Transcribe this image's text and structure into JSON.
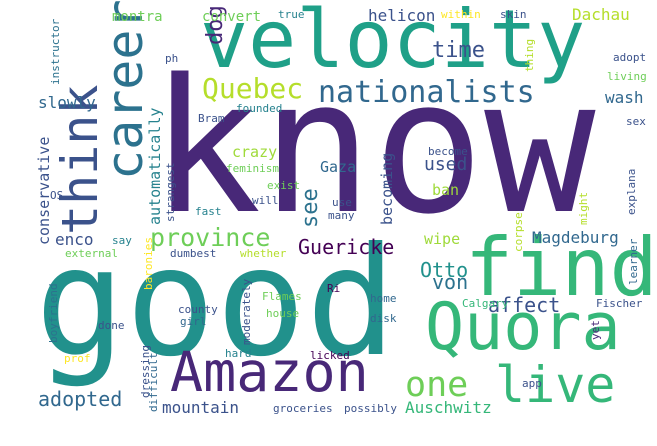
{
  "words": [
    {
      "text": "know",
      "color": "#482878",
      "vertical": false
    },
    {
      "text": "good",
      "color": "#21918c",
      "vertical": false
    },
    {
      "text": "velocity",
      "color": "#1fa088",
      "vertical": false
    },
    {
      "text": "think",
      "color": "#3b528b",
      "vertical": true
    },
    {
      "text": "career",
      "color": "#2c728e",
      "vertical": true
    },
    {
      "text": "find",
      "color": "#35b779",
      "vertical": false
    },
    {
      "text": "Quora",
      "color": "#35b779",
      "vertical": false
    },
    {
      "text": "Amazon",
      "color": "#482878",
      "vertical": false
    },
    {
      "text": "live",
      "color": "#35b779",
      "vertical": false
    },
    {
      "text": "one",
      "color": "#6ece58",
      "vertical": false
    },
    {
      "text": "nationalists",
      "color": "#31688e",
      "vertical": false
    },
    {
      "text": "Quebec",
      "color": "#b5de2b",
      "vertical": false
    },
    {
      "text": "province",
      "color": "#6ece58",
      "vertical": false
    },
    {
      "text": "time",
      "color": "#3b528b",
      "vertical": false
    },
    {
      "text": "dog",
      "color": "#482878",
      "vertical": true
    },
    {
      "text": "see",
      "color": "#2c728e",
      "vertical": true
    },
    {
      "text": "Guericke",
      "color": "#440154",
      "vertical": false
    },
    {
      "text": "Otto",
      "color": "#21918c",
      "vertical": false
    },
    {
      "text": "von",
      "color": "#2c728e",
      "vertical": false
    },
    {
      "text": "affect",
      "color": "#3b528b",
      "vertical": false
    },
    {
      "text": "adopted",
      "color": "#31688e",
      "vertical": false
    },
    {
      "text": "mountain",
      "color": "#3b528b",
      "vertical": false
    },
    {
      "text": "Auschwitz",
      "color": "#35b779",
      "vertical": false
    },
    {
      "text": "Magdeburg",
      "color": "#31688e",
      "vertical": false
    },
    {
      "text": "helicon",
      "color": "#3b528b",
      "vertical": false
    },
    {
      "text": "Dachau",
      "color": "#b5de2b",
      "vertical": false
    },
    {
      "text": "wash",
      "color": "#31688e",
      "vertical": false
    },
    {
      "text": "montra",
      "color": "#6ece58",
      "vertical": false
    },
    {
      "text": "convert",
      "color": "#6ece58",
      "vertical": false
    },
    {
      "text": "slowly",
      "color": "#31688e",
      "vertical": false
    },
    {
      "text": "automatically",
      "color": "#26828e",
      "vertical": true
    },
    {
      "text": "conservative",
      "color": "#3b528b",
      "vertical": true
    },
    {
      "text": "enco",
      "color": "#3b528b",
      "vertical": false
    },
    {
      "text": "crazy",
      "color": "#9fda3a",
      "vertical": false
    },
    {
      "text": "Gaza",
      "color": "#31688e",
      "vertical": false
    },
    {
      "text": "becoming",
      "color": "#3b528b",
      "vertical": true
    },
    {
      "text": "used",
      "color": "#3b528b",
      "vertical": false
    },
    {
      "text": "ban",
      "color": "#9fda3a",
      "vertical": false
    },
    {
      "text": "wipe",
      "color": "#9fda3a",
      "vertical": false
    },
    {
      "text": "within",
      "color": "#fde725",
      "vertical": false
    },
    {
      "text": "skin",
      "color": "#3b528b",
      "vertical": false
    },
    {
      "text": "true",
      "color": "#26828e",
      "vertical": false
    },
    {
      "text": "adopt",
      "color": "#3b528b",
      "vertical": false
    },
    {
      "text": "living",
      "color": "#6ece58",
      "vertical": false
    },
    {
      "text": "sex",
      "color": "#3b528b",
      "vertical": false
    },
    {
      "text": "explana",
      "color": "#3b528b",
      "vertical": true
    },
    {
      "text": "learner",
      "color": "#31688e",
      "vertical": true
    },
    {
      "text": "Fischer",
      "color": "#3b528b",
      "vertical": false
    },
    {
      "text": "yet",
      "color": "#482878",
      "vertical": true
    },
    {
      "text": "app",
      "color": "#3b528b",
      "vertical": false
    },
    {
      "text": "Calgary",
      "color": "#35b779",
      "vertical": false
    },
    {
      "text": "groceries",
      "color": "#3b528b",
      "vertical": false
    },
    {
      "text": "possibly",
      "color": "#3b528b",
      "vertical": false
    },
    {
      "text": "licked",
      "color": "#440154",
      "vertical": false
    },
    {
      "text": "disk",
      "color": "#31688e",
      "vertical": false
    },
    {
      "text": "home",
      "color": "#31688e",
      "vertical": false
    },
    {
      "text": "Ri",
      "color": "#440154",
      "vertical": false
    },
    {
      "text": "corpse",
      "color": "#b5de2b",
      "vertical": true
    },
    {
      "text": "might",
      "color": "#b5de2b",
      "vertical": true
    },
    {
      "text": "thing",
      "color": "#b5de2b",
      "vertical": true
    },
    {
      "text": "become",
      "color": "#3b528b",
      "vertical": false
    },
    {
      "text": "exist",
      "color": "#6ece58",
      "vertical": false
    },
    {
      "text": "feminism",
      "color": "#6ece58",
      "vertical": false
    },
    {
      "text": "will",
      "color": "#3b528b",
      "vertical": false
    },
    {
      "text": "use",
      "color": "#3b528b",
      "vertical": false
    },
    {
      "text": "many",
      "color": "#3b528b",
      "vertical": false
    },
    {
      "text": "fast",
      "color": "#26828e",
      "vertical": false
    },
    {
      "text": "strangest",
      "color": "#3b528b",
      "vertical": true
    },
    {
      "text": "founded",
      "color": "#26828e",
      "vertical": false
    },
    {
      "text": "Bram",
      "color": "#3b528b",
      "vertical": false
    },
    {
      "text": "ph",
      "color": "#3b528b",
      "vertical": false
    },
    {
      "text": "whether",
      "color": "#b5de2b",
      "vertical": false
    },
    {
      "text": "dumbest",
      "color": "#3b528b",
      "vertical": false
    },
    {
      "text": "external",
      "color": "#6ece58",
      "vertical": false
    },
    {
      "text": "say",
      "color": "#26828e",
      "vertical": false
    },
    {
      "text": "OS",
      "color": "#3b528b",
      "vertical": false
    },
    {
      "text": "instructor",
      "color": "#2c728e",
      "vertical": true
    },
    {
      "text": "boyfriend",
      "color": "#2c728e",
      "vertical": true
    },
    {
      "text": "baronies",
      "color": "#fde725",
      "vertical": true
    },
    {
      "text": "county",
      "color": "#3b528b",
      "vertical": false
    },
    {
      "text": "girl",
      "color": "#31688e",
      "vertical": false
    },
    {
      "text": "moderately",
      "color": "#3b528b",
      "vertical": true
    },
    {
      "text": "Flames",
      "color": "#6ece58",
      "vertical": false
    },
    {
      "text": "house",
      "color": "#6ece58",
      "vertical": false
    },
    {
      "text": "done",
      "color": "#3b528b",
      "vertical": false
    },
    {
      "text": "prof",
      "color": "#fde725",
      "vertical": false
    },
    {
      "text": "hard",
      "color": "#26828e",
      "vertical": false
    },
    {
      "text": "dressing",
      "color": "#3b528b",
      "vertical": true
    },
    {
      "text": "difficult",
      "color": "#31688e",
      "vertical": true
    }
  ]
}
